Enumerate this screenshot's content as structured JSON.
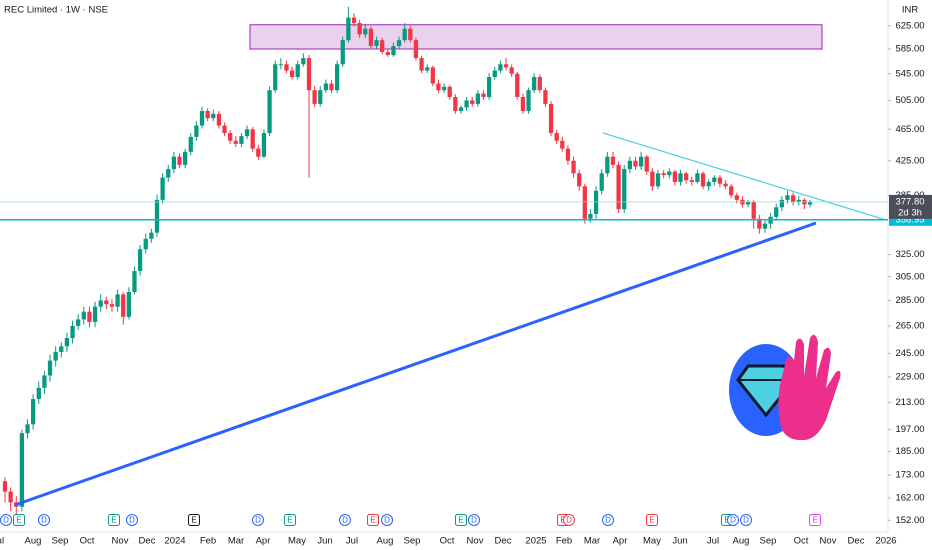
{
  "chart_data": {
    "type": "candlestick",
    "title": "REC Limited · 1W · NSE",
    "currency": "INR",
    "log_scale": true,
    "up_color": "#089981",
    "down_color": "#f23645",
    "ylim": [
      147,
      673
    ],
    "yticks": [
      {
        "value": 625,
        "label": "625.00"
      },
      {
        "value": 585,
        "label": "585.00"
      },
      {
        "value": 545,
        "label": "545.00"
      },
      {
        "value": 505,
        "label": "505.00"
      },
      {
        "value": 465,
        "label": "465.00"
      },
      {
        "value": 425,
        "label": "425.00"
      },
      {
        "value": 385,
        "label": "385.00"
      },
      {
        "value": 325,
        "label": "325.00"
      },
      {
        "value": 305,
        "label": "305.00"
      },
      {
        "value": 285,
        "label": "285.00"
      },
      {
        "value": 265,
        "label": "265.00"
      },
      {
        "value": 245,
        "label": "245.00"
      },
      {
        "value": 229,
        "label": "229.00"
      },
      {
        "value": 213,
        "label": "213.00"
      },
      {
        "value": 197,
        "label": "197.00"
      },
      {
        "value": 185,
        "label": "185.00"
      },
      {
        "value": 173,
        "label": "173.00"
      },
      {
        "value": 162,
        "label": "162.00"
      },
      {
        "value": 152,
        "label": "152.00"
      }
    ],
    "xticks": [
      "Jul",
      "Aug",
      "Sep",
      "Oct",
      "Nov",
      "Dec",
      "2024",
      "Feb",
      "Mar",
      "Apr",
      "May",
      "Jun",
      "Jul",
      "Aug",
      "Sep",
      "Oct",
      "Nov",
      "Dec",
      "2025",
      "Feb",
      "Mar",
      "Apr",
      "May",
      "Jun",
      "Jul",
      "Aug",
      "Sep",
      "Oct",
      "Nov",
      "Dec",
      "2026"
    ],
    "open": [
      170,
      165,
      160,
      158,
      195,
      200,
      215,
      222,
      230,
      240,
      246,
      250,
      256,
      265,
      270,
      276,
      268,
      280,
      285,
      282,
      280,
      290,
      272,
      292,
      310,
      330,
      340,
      346,
      380,
      405,
      415,
      430,
      420,
      436,
      455,
      470,
      490,
      480,
      486,
      470,
      460,
      450,
      446,
      456,
      465,
      440,
      430,
      460,
      520,
      560,
      560,
      550,
      540,
      560,
      570,
      520,
      500,
      520,
      530,
      520,
      560,
      600,
      640,
      630,
      610,
      620,
      590,
      600,
      580,
      575,
      590,
      600,
      620,
      600,
      570,
      550,
      555,
      530,
      520,
      525,
      510,
      490,
      495,
      505,
      500,
      515,
      510,
      540,
      550,
      560,
      555,
      545,
      510,
      490,
      520,
      540,
      520,
      500,
      460,
      450,
      440,
      425,
      410,
      395,
      360,
      365,
      390,
      410,
      430,
      420,
      370,
      415,
      425,
      418,
      430,
      412,
      395,
      410,
      408,
      412,
      400,
      410,
      402,
      400,
      410,
      395,
      400,
      405,
      398,
      395,
      385,
      380,
      375,
      378,
      360,
      350,
      355,
      362,
      372,
      380,
      385,
      378,
      380,
      375
    ],
    "high": [
      172,
      167,
      163,
      197,
      203,
      218,
      226,
      233,
      244,
      250,
      253,
      260,
      269,
      274,
      280,
      280,
      284,
      290,
      288,
      286,
      294,
      292,
      296,
      314,
      334,
      345,
      350,
      386,
      410,
      420,
      436,
      434,
      440,
      460,
      476,
      496,
      494,
      492,
      490,
      474,
      464,
      456,
      460,
      470,
      468,
      445,
      465,
      526,
      566,
      570,
      566,
      556,
      566,
      578,
      575,
      526,
      526,
      536,
      535,
      566,
      606,
      660,
      648,
      636,
      628,
      624,
      606,
      604,
      584,
      596,
      606,
      630,
      626,
      604,
      574,
      560,
      558,
      536,
      530,
      528,
      514,
      498,
      510,
      510,
      520,
      520,
      546,
      556,
      566,
      570,
      560,
      548,
      515,
      524,
      546,
      544,
      524,
      504,
      464,
      455,
      444,
      430,
      414,
      398,
      370,
      395,
      415,
      436,
      436,
      424,
      420,
      430,
      430,
      436,
      432,
      416,
      414,
      414,
      416,
      414,
      414,
      412,
      406,
      414,
      412,
      403,
      408,
      408,
      402,
      398,
      388,
      384,
      380,
      380,
      364,
      358,
      366,
      376,
      384,
      390,
      388,
      384,
      382,
      380
    ],
    "low": [
      160,
      156,
      152,
      156,
      192,
      197,
      212,
      218,
      226,
      236,
      242,
      246,
      252,
      262,
      266,
      264,
      264,
      276,
      278,
      276,
      276,
      266,
      270,
      290,
      306,
      326,
      336,
      342,
      376,
      400,
      410,
      416,
      416,
      432,
      450,
      466,
      476,
      476,
      466,
      456,
      446,
      442,
      442,
      452,
      436,
      426,
      428,
      456,
      516,
      552,
      546,
      536,
      536,
      556,
      405,
      496,
      496,
      516,
      516,
      516,
      556,
      596,
      624,
      604,
      604,
      586,
      586,
      576,
      572,
      572,
      586,
      596,
      596,
      566,
      546,
      546,
      526,
      516,
      516,
      506,
      486,
      486,
      490,
      496,
      496,
      506,
      506,
      536,
      546,
      550,
      540,
      506,
      486,
      486,
      516,
      516,
      496,
      456,
      446,
      436,
      420,
      405,
      390,
      355,
      356,
      360,
      386,
      406,
      416,
      366,
      366,
      410,
      414,
      414,
      408,
      390,
      392,
      404,
      404,
      396,
      396,
      398,
      396,
      398,
      392,
      390,
      396,
      394,
      392,
      382,
      376,
      372,
      372,
      350,
      345,
      346,
      350,
      358,
      368,
      376,
      374,
      374,
      370,
      372
    ],
    "close": [
      165,
      160,
      158,
      195,
      200,
      215,
      222,
      230,
      240,
      246,
      250,
      256,
      265,
      270,
      276,
      268,
      280,
      285,
      282,
      280,
      290,
      272,
      292,
      310,
      330,
      340,
      346,
      380,
      405,
      415,
      430,
      420,
      436,
      455,
      470,
      490,
      480,
      486,
      470,
      460,
      450,
      446,
      456,
      465,
      440,
      430,
      460,
      520,
      560,
      560,
      550,
      540,
      560,
      570,
      520,
      500,
      520,
      530,
      520,
      560,
      600,
      640,
      630,
      610,
      620,
      590,
      600,
      580,
      575,
      590,
      600,
      620,
      600,
      570,
      550,
      555,
      530,
      520,
      525,
      510,
      490,
      495,
      505,
      500,
      515,
      510,
      540,
      550,
      560,
      555,
      545,
      510,
      490,
      520,
      540,
      520,
      500,
      460,
      450,
      440,
      425,
      410,
      395,
      360,
      365,
      390,
      410,
      430,
      420,
      370,
      415,
      425,
      418,
      430,
      412,
      395,
      410,
      408,
      412,
      400,
      410,
      402,
      400,
      410,
      395,
      400,
      405,
      398,
      395,
      385,
      380,
      375,
      378,
      360,
      350,
      355,
      362,
      372,
      380,
      385,
      378,
      380,
      375,
      377.8
    ],
    "last_price": {
      "value": 377.8,
      "label": "377.80"
    },
    "countdown": "2d 3h",
    "hline": {
      "value": 358.95,
      "label": "358.95"
    },
    "zone": [
      585,
      627
    ],
    "events": [
      {
        "label": "D",
        "color": "#2962ff"
      },
      {
        "label": "E",
        "color": "#089981"
      },
      {
        "label": "D",
        "color": "#2962ff"
      },
      {
        "label": "E",
        "color": "#089981"
      },
      {
        "label": "D",
        "color": "#2962ff"
      },
      {
        "label": "E",
        "color": "#131722"
      },
      {
        "label": "D",
        "color": "#2962ff"
      },
      {
        "label": "E",
        "color": "#089981"
      },
      {
        "label": "D",
        "color": "#2962ff"
      },
      {
        "label": "E",
        "color": "#f23645"
      },
      {
        "label": "D",
        "color": "#2962ff"
      },
      {
        "label": "E",
        "color": "#089981"
      },
      {
        "label": "D",
        "color": "#2962ff"
      },
      {
        "label": "E",
        "color": "#f23645"
      },
      {
        "label": "D",
        "color": "#f23645"
      },
      {
        "label": "D",
        "color": "#2962ff"
      },
      {
        "label": "E",
        "color": "#f23645"
      },
      {
        "label": "E",
        "color": "#089981"
      },
      {
        "label": "D",
        "color": "#2962ff"
      },
      {
        "label": "D",
        "color": "#2962ff"
      },
      {
        "label": "E",
        "color": "#e040fb"
      }
    ]
  }
}
